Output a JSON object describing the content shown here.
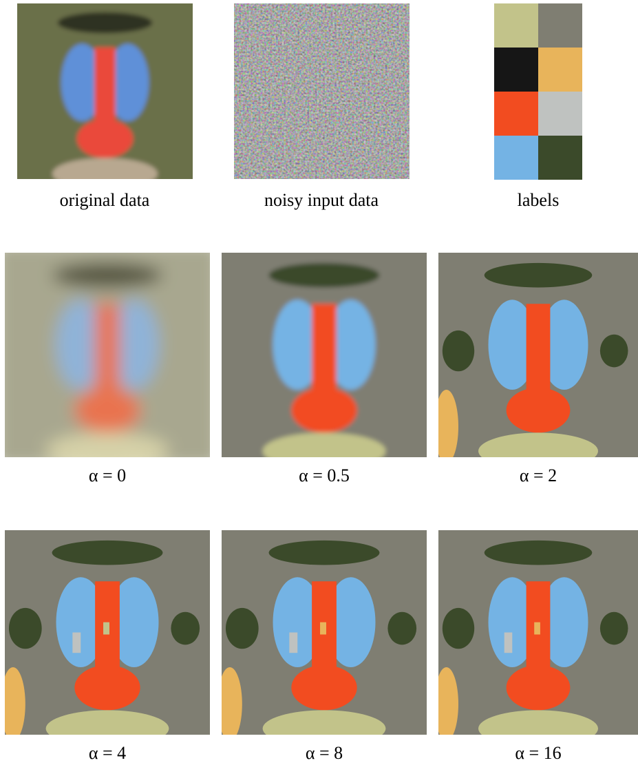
{
  "figure": {
    "top": [
      {
        "caption": "original data"
      },
      {
        "caption": "noisy input data"
      },
      {
        "caption": "labels",
        "colors": [
          "#c2c38a",
          "#7f7e72",
          "#161616",
          "#e8b45b",
          "#f24c20",
          "#bfc2c0",
          "#74b3e4",
          "#3b4a2a"
        ]
      }
    ],
    "results": [
      {
        "caption": "α = 0"
      },
      {
        "caption": "α = 0.5"
      },
      {
        "caption": "α = 2"
      },
      {
        "caption": "α = 4"
      },
      {
        "caption": "α = 8"
      },
      {
        "caption": "α = 16"
      }
    ]
  }
}
